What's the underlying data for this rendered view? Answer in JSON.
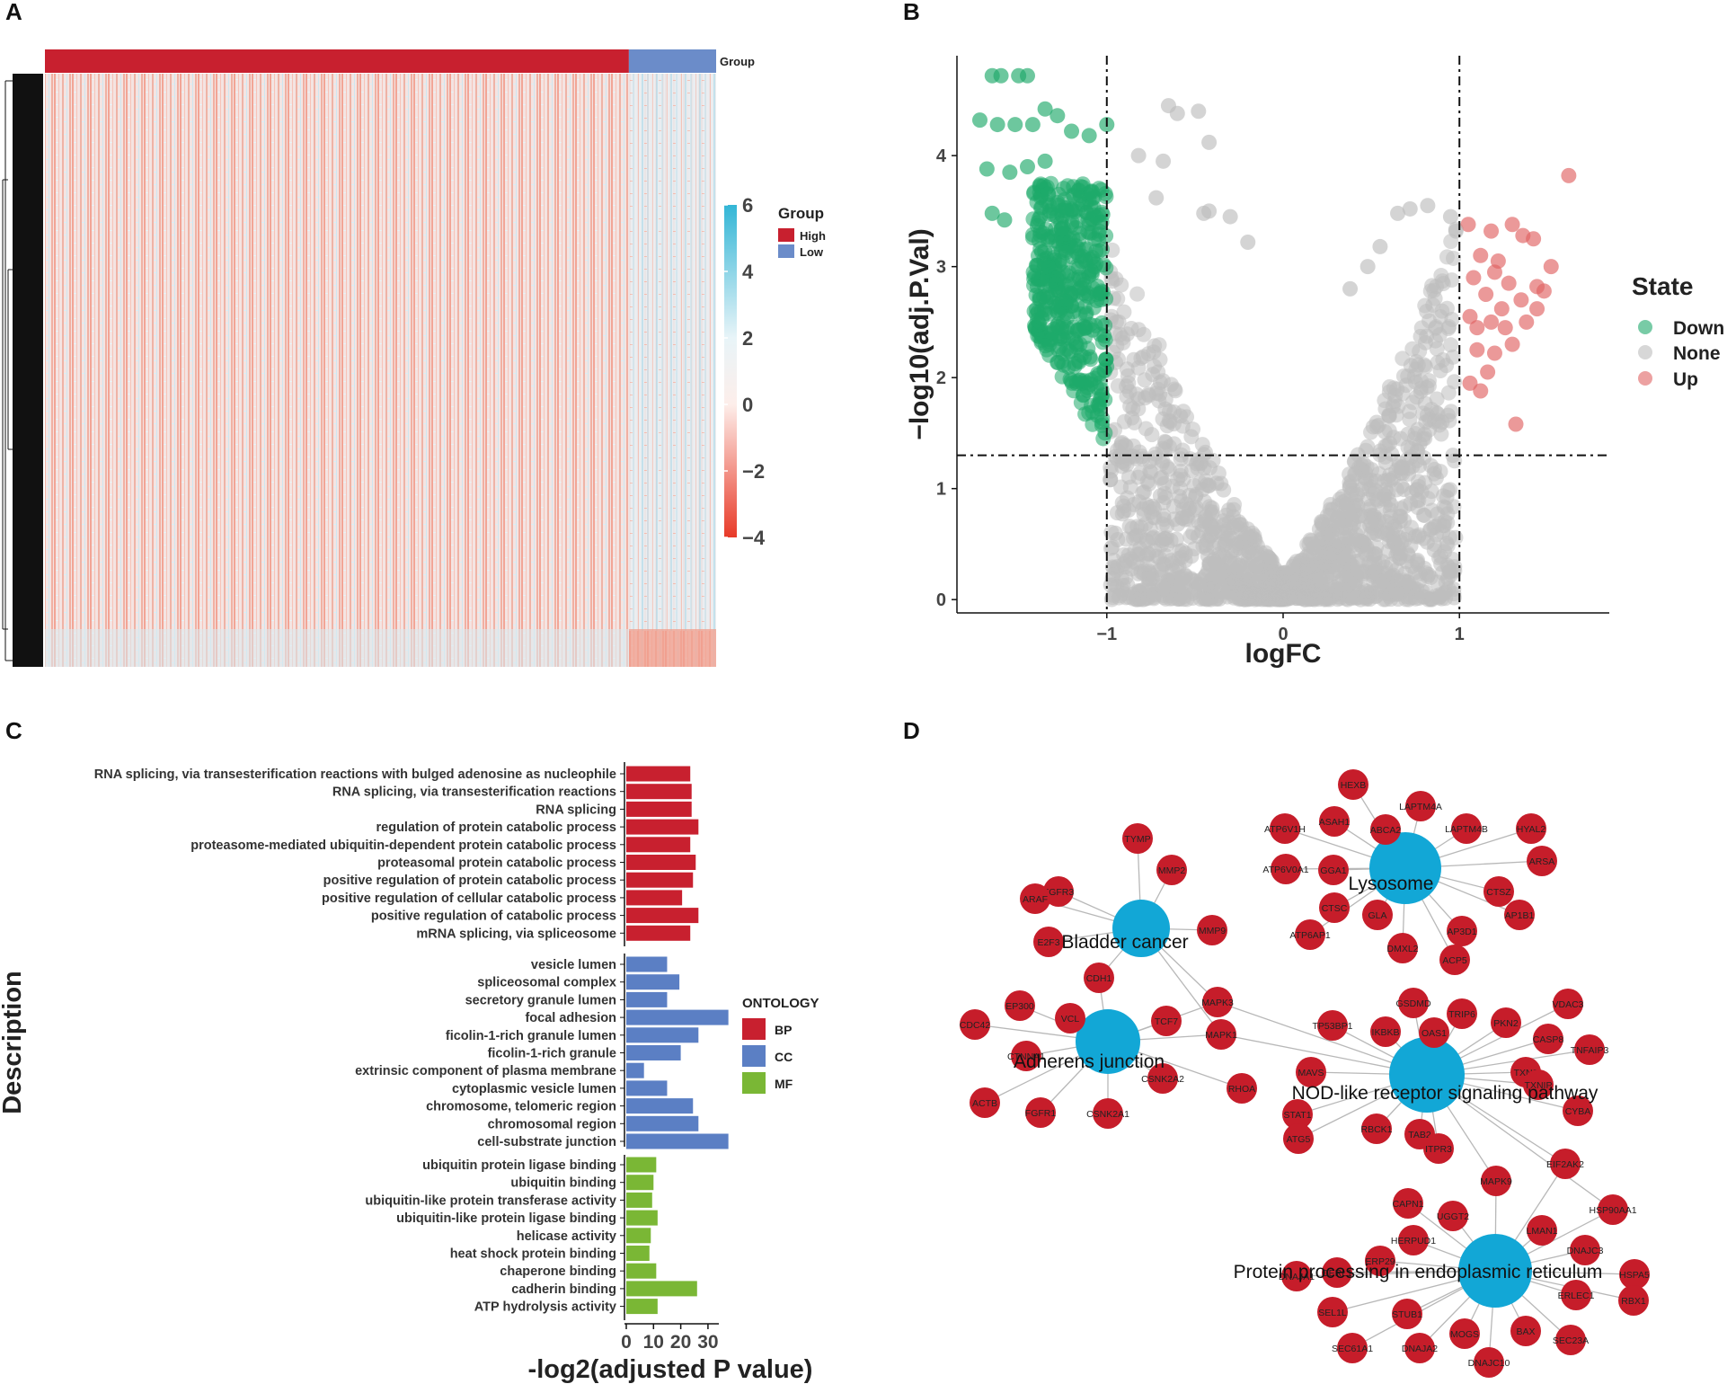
{
  "panels": {
    "a": {
      "label": "A"
    },
    "b": {
      "label": "B"
    },
    "c": {
      "label": "C"
    },
    "d": {
      "label": "D"
    }
  },
  "colors": {
    "high": "#c8202f",
    "low": "#6b8cc9",
    "down": "#1ea96a",
    "none": "#bdbdbd",
    "up": "#e06262",
    "bp": "#c8202f",
    "cc": "#5b7fc4",
    "mf": "#7ab735",
    "gene_node": "#c61d2a",
    "pathway_node": "#12a7d6",
    "edge": "#b8b8b8"
  },
  "chart_data": [
    {
      "type": "heatmap",
      "panel": "A",
      "annotation_label": "Group",
      "legend_title": "Group",
      "groups": [
        {
          "name": "High",
          "fraction": 0.87
        },
        {
          "name": "Low",
          "fraction": 0.13
        }
      ],
      "scale": {
        "min": -4,
        "max": 6,
        "ticks": [
          "6",
          "4",
          "2",
          "0",
          "−2",
          "−4"
        ]
      }
    },
    {
      "type": "scatter",
      "panel": "B",
      "xlabel": "logFC",
      "ylabel": "−log10(adj.P.Val)",
      "xlim": [
        -1.85,
        1.85
      ],
      "ylim": [
        -0.12,
        4.9
      ],
      "xticks": [
        -1,
        0,
        1
      ],
      "xtick_labels": [
        "−1",
        "0",
        "1"
      ],
      "yticks": [
        0,
        1,
        2,
        3,
        4
      ],
      "ytick_labels": [
        "0",
        "1",
        "2",
        "3",
        "4"
      ],
      "vlines": [
        -1,
        1
      ],
      "hline": 1.3,
      "legend_title": "State",
      "legend": [
        "Down",
        "None",
        "Up"
      ],
      "series": [
        {
          "name": "Up",
          "points": [
            [
              1.62,
              3.82
            ],
            [
              1.05,
              3.38
            ],
            [
              1.12,
              3.1
            ],
            [
              1.18,
              3.32
            ],
            [
              1.22,
              3.05
            ],
            [
              1.3,
              3.38
            ],
            [
              1.36,
              3.28
            ],
            [
              1.42,
              3.25
            ],
            [
              1.08,
              2.9
            ],
            [
              1.15,
              2.75
            ],
            [
              1.2,
              2.95
            ],
            [
              1.28,
              2.85
            ],
            [
              1.35,
              2.7
            ],
            [
              1.44,
              2.62
            ],
            [
              1.52,
              3.0
            ],
            [
              1.1,
              2.45
            ],
            [
              1.18,
              2.5
            ],
            [
              1.26,
              2.45
            ],
            [
              1.38,
              2.5
            ],
            [
              1.48,
              2.78
            ],
            [
              1.1,
              2.25
            ],
            [
              1.2,
              2.22
            ],
            [
              1.3,
              2.3
            ],
            [
              1.16,
              2.05
            ],
            [
              1.06,
              1.95
            ],
            [
              1.12,
              1.88
            ],
            [
              1.32,
              1.58
            ],
            [
              1.44,
              2.82
            ],
            [
              1.24,
              2.62
            ],
            [
              1.06,
              2.55
            ]
          ]
        },
        {
          "name": "Down",
          "points": [
            [
              -1.65,
              4.72
            ],
            [
              -1.6,
              4.72
            ],
            [
              -1.5,
              4.72
            ],
            [
              -1.45,
              4.72
            ],
            [
              -1.72,
              4.32
            ],
            [
              -1.62,
              4.28
            ],
            [
              -1.52,
              4.28
            ],
            [
              -1.42,
              4.28
            ],
            [
              -1.35,
              4.42
            ],
            [
              -1.28,
              4.36
            ],
            [
              -1.2,
              4.22
            ],
            [
              -1.1,
              4.18
            ],
            [
              -1.0,
              4.28
            ],
            [
              -1.68,
              3.88
            ],
            [
              -1.55,
              3.85
            ],
            [
              -1.45,
              3.9
            ],
            [
              -1.35,
              3.95
            ],
            [
              -1.65,
              3.48
            ],
            [
              -1.58,
              3.42
            ]
          ]
        },
        {
          "name": "None",
          "points": [
            [
              -0.65,
              4.45
            ],
            [
              -0.6,
              4.38
            ],
            [
              -0.48,
              4.4
            ],
            [
              -0.42,
              4.12
            ],
            [
              -0.82,
              4.0
            ],
            [
              -0.72,
              3.62
            ],
            [
              -0.68,
              3.95
            ],
            [
              -0.45,
              3.48
            ],
            [
              -0.42,
              3.5
            ],
            [
              -0.3,
              3.45
            ],
            [
              -0.2,
              3.22
            ],
            [
              0.65,
              3.48
            ],
            [
              0.72,
              3.52
            ],
            [
              0.82,
              3.55
            ],
            [
              0.95,
              3.45
            ],
            [
              0.98,
              3.32
            ],
            [
              0.55,
              3.18
            ],
            [
              0.48,
              3.0
            ],
            [
              0.38,
              2.8
            ],
            [
              -0.98,
              1.08
            ]
          ]
        }
      ]
    },
    {
      "type": "bar",
      "panel": "C",
      "orientation": "horizontal",
      "ylabel": "Description",
      "xlabel": "-log2(adjusted P value)",
      "xlim": [
        0,
        33
      ],
      "xticks": [
        0,
        10,
        20,
        30
      ],
      "xtick_labels": [
        "0",
        "10",
        "20",
        "30"
      ],
      "legend_title": "ONTOLOGY",
      "legend": [
        "BP",
        "CC",
        "MF"
      ],
      "groups": [
        {
          "name": "BP",
          "categories": [
            "RNA splicing, via transesterification reactions with bulged adenosine as nucleophile",
            "RNA splicing, via transesterification reactions",
            "RNA splicing",
            "regulation of protein catabolic process",
            "proteasome-mediated ubiquitin-dependent protein catabolic process",
            "proteasomal protein catabolic process",
            "positive regulation of protein catabolic process",
            "positive regulation of cellular catabolic process",
            "positive regulation of catabolic process",
            "mRNA splicing, via spliceosome"
          ],
          "values": [
            23.5,
            24,
            24,
            26.5,
            23.5,
            25.5,
            24.5,
            20.5,
            26.5,
            23.5
          ]
        },
        {
          "name": "CC",
          "categories": [
            "vesicle lumen",
            "spliceosomal complex",
            "secretory granule lumen",
            "focal adhesion",
            "ficolin-1-rich granule lumen",
            "ficolin-1-rich granule",
            "extrinsic component of plasma membrane",
            "cytoplasmic vesicle lumen",
            "chromosome, telomeric region",
            "chromosomal region",
            "cell-substrate junction"
          ],
          "values": [
            15,
            19.5,
            15,
            37.5,
            26.5,
            20,
            6.5,
            15,
            24.5,
            26.5,
            37.5
          ]
        },
        {
          "name": "MF",
          "categories": [
            "ubiquitin protein ligase binding",
            "ubiquitin binding",
            "ubiquitin-like protein transferase activity",
            "ubiquitin-like protein ligase binding",
            "helicase activity",
            "heat shock protein binding",
            "chaperone binding",
            "cadherin binding",
            "ATP hydrolysis activity"
          ],
          "values": [
            11,
            10,
            9.5,
            11.5,
            9,
            8.5,
            11,
            26,
            11.5
          ]
        }
      ]
    },
    {
      "type": "network",
      "panel": "D",
      "pathways": [
        {
          "id": "lys",
          "name": "Lysosome"
        },
        {
          "id": "bla",
          "name": "Bladder cancer"
        },
        {
          "id": "adh",
          "name": "Adherens junction"
        },
        {
          "id": "nod",
          "name": "NOD-like receptor signaling pathway"
        },
        {
          "id": "pro",
          "name": "Protein processing in endoplasmic reticulum"
        }
      ],
      "genes": [
        {
          "name": "HEXB",
          "links": [
            "lys"
          ]
        },
        {
          "name": "LAPTM4A",
          "links": [
            "lys"
          ]
        },
        {
          "name": "ASAH1",
          "links": [
            "lys"
          ]
        },
        {
          "name": "ABCA2",
          "links": [
            "lys"
          ]
        },
        {
          "name": "ATP6V1H",
          "links": [
            "lys"
          ]
        },
        {
          "name": "LAPTM4B",
          "links": [
            "lys"
          ]
        },
        {
          "name": "HYAL2",
          "links": [
            "lys"
          ]
        },
        {
          "name": "ARSA",
          "links": [
            "lys"
          ]
        },
        {
          "name": "ATP6V0A1",
          "links": [
            "lys"
          ]
        },
        {
          "name": "GGA1",
          "links": [
            "lys"
          ]
        },
        {
          "name": "CTSZ",
          "links": [
            "lys"
          ]
        },
        {
          "name": "CTSC",
          "links": [
            "lys"
          ]
        },
        {
          "name": "GLA",
          "links": [
            "lys"
          ]
        },
        {
          "name": "AP1B1",
          "links": [
            "lys"
          ]
        },
        {
          "name": "ATP6AP1",
          "links": [
            "lys"
          ]
        },
        {
          "name": "AP3D1",
          "links": [
            "lys"
          ]
        },
        {
          "name": "DMXL2",
          "links": [
            "lys"
          ]
        },
        {
          "name": "ACP5",
          "links": [
            "lys"
          ]
        },
        {
          "name": "TYMP",
          "links": [
            "bla"
          ]
        },
        {
          "name": "FGFR3",
          "links": [
            "bla"
          ]
        },
        {
          "name": "MMP2",
          "links": [
            "bla"
          ]
        },
        {
          "name": "ARAF",
          "links": [
            "bla"
          ]
        },
        {
          "name": "MMP9",
          "links": [
            "bla"
          ]
        },
        {
          "name": "E2F3",
          "links": [
            "bla"
          ]
        },
        {
          "name": "CDH1",
          "links": [
            "bla",
            "adh"
          ]
        },
        {
          "name": "MAPK3",
          "links": [
            "bla",
            "adh",
            "nod"
          ]
        },
        {
          "name": "MAPK1",
          "links": [
            "bla",
            "adh",
            "nod"
          ]
        },
        {
          "name": "EP300",
          "links": [
            "adh"
          ]
        },
        {
          "name": "TCF7",
          "links": [
            "adh"
          ]
        },
        {
          "name": "CDC42",
          "links": [
            "adh"
          ]
        },
        {
          "name": "VCL",
          "links": [
            "adh"
          ]
        },
        {
          "name": "CTNNA1",
          "links": [
            "adh"
          ]
        },
        {
          "name": "CSNK2A2",
          "links": [
            "adh"
          ]
        },
        {
          "name": "RHOA",
          "links": [
            "adh"
          ]
        },
        {
          "name": "ACTB",
          "links": [
            "adh"
          ]
        },
        {
          "name": "FGFR1",
          "links": [
            "adh"
          ]
        },
        {
          "name": "CSNK2A1",
          "links": [
            "adh"
          ]
        },
        {
          "name": "GSDMD",
          "links": [
            "nod"
          ]
        },
        {
          "name": "VDAC3",
          "links": [
            "nod"
          ]
        },
        {
          "name": "TRIP6",
          "links": [
            "nod"
          ]
        },
        {
          "name": "PKN2",
          "links": [
            "nod"
          ]
        },
        {
          "name": "TP53BP1",
          "links": [
            "nod"
          ]
        },
        {
          "name": "IKBKB",
          "links": [
            "nod"
          ]
        },
        {
          "name": "OAS1",
          "links": [
            "nod"
          ]
        },
        {
          "name": "CASP8",
          "links": [
            "nod"
          ]
        },
        {
          "name": "TNFAIP3",
          "links": [
            "nod"
          ]
        },
        {
          "name": "MAVS",
          "links": [
            "nod"
          ]
        },
        {
          "name": "TXN2",
          "links": [
            "nod"
          ]
        },
        {
          "name": "TXNIP",
          "links": [
            "nod"
          ]
        },
        {
          "name": "CYBA",
          "links": [
            "nod"
          ]
        },
        {
          "name": "STAT1",
          "links": [
            "nod"
          ]
        },
        {
          "name": "RBCK1",
          "links": [
            "nod"
          ]
        },
        {
          "name": "ATG5",
          "links": [
            "nod"
          ]
        },
        {
          "name": "TAB2",
          "links": [
            "nod"
          ]
        },
        {
          "name": "ITPR3",
          "links": [
            "nod"
          ]
        },
        {
          "name": "MAPK9",
          "links": [
            "nod",
            "pro"
          ]
        },
        {
          "name": "EIF2AK2",
          "links": [
            "nod",
            "pro"
          ]
        },
        {
          "name": "HSP90AA1",
          "links": [
            "nod",
            "pro"
          ]
        },
        {
          "name": "CAPN1",
          "links": [
            "pro"
          ]
        },
        {
          "name": "UGGT2",
          "links": [
            "pro"
          ]
        },
        {
          "name": "LMAN1",
          "links": [
            "pro"
          ]
        },
        {
          "name": "HERPUD1",
          "links": [
            "pro"
          ]
        },
        {
          "name": "DNAJC3",
          "links": [
            "pro"
          ]
        },
        {
          "name": "ERP29",
          "links": [
            "pro"
          ]
        },
        {
          "name": "DERL1",
          "links": [
            "pro"
          ]
        },
        {
          "name": "DNAJA1",
          "links": [
            "pro"
          ]
        },
        {
          "name": "HSPA5",
          "links": [
            "pro"
          ]
        },
        {
          "name": "ERLEC1",
          "links": [
            "pro"
          ]
        },
        {
          "name": "RBX1",
          "links": [
            "pro"
          ]
        },
        {
          "name": "SEL1L",
          "links": [
            "pro"
          ]
        },
        {
          "name": "STUB1",
          "links": [
            "pro"
          ]
        },
        {
          "name": "MOGS",
          "links": [
            "pro"
          ]
        },
        {
          "name": "BAX",
          "links": [
            "pro"
          ]
        },
        {
          "name": "SEC61A1",
          "links": [
            "pro"
          ]
        },
        {
          "name": "DNAJA2",
          "links": [
            "pro"
          ]
        },
        {
          "name": "SEC23A",
          "links": [
            "pro"
          ]
        },
        {
          "name": "DNAJC10",
          "links": [
            "pro"
          ]
        }
      ]
    }
  ]
}
